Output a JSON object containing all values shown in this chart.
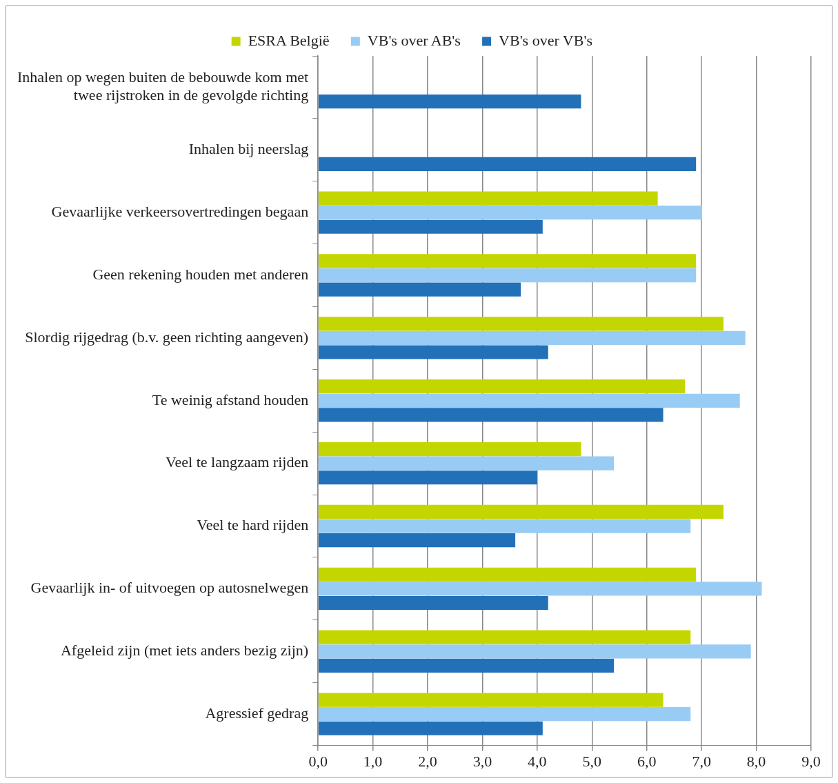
{
  "chart_data": {
    "type": "bar",
    "orientation": "horizontal",
    "categories": [
      "Inhalen op wegen buiten de bebouwde kom met twee rijstroken in de gevolgde richting",
      "Inhalen bij neerslag",
      "Gevaarlijke verkeersovertredingen begaan",
      "Geen rekening houden met anderen",
      "Slordig rijgedrag (b.v. geen richting aangeven)",
      "Te weinig afstand houden",
      "Veel te langzaam rijden",
      "Veel te hard rijden",
      "Gevaarlijk in- of uitvoegen op autosnelwegen",
      "Afgeleid zijn (met iets anders bezig zijn)",
      "Agressief gedrag"
    ],
    "series": [
      {
        "name": "ESRA België",
        "color": "#c4d600",
        "values": [
          null,
          null,
          6.2,
          6.9,
          7.4,
          6.7,
          4.8,
          7.4,
          6.9,
          6.8,
          6.3
        ]
      },
      {
        "name": "VB's over AB's",
        "color": "#99ccf5",
        "values": [
          null,
          null,
          7.0,
          6.9,
          7.8,
          7.7,
          5.4,
          6.8,
          8.1,
          7.9,
          6.8
        ]
      },
      {
        "name": "VB's over VB's",
        "color": "#2270b8",
        "values": [
          4.8,
          6.9,
          4.1,
          3.7,
          4.2,
          6.3,
          4.0,
          3.6,
          4.2,
          5.4,
          4.1
        ]
      }
    ],
    "xlim": [
      0,
      9
    ],
    "xticks": [
      {
        "value": 0,
        "label": "0,0"
      },
      {
        "value": 1,
        "label": "1,0"
      },
      {
        "value": 2,
        "label": "2,0"
      },
      {
        "value": 3,
        "label": "3,0"
      },
      {
        "value": 4,
        "label": "4,0"
      },
      {
        "value": 5,
        "label": "5,0"
      },
      {
        "value": 6,
        "label": "6,0"
      },
      {
        "value": 7,
        "label": "7,0"
      },
      {
        "value": 8,
        "label": "8,0"
      },
      {
        "value": 9,
        "label": "9,0"
      }
    ],
    "grid": "x",
    "legend": "top"
  }
}
